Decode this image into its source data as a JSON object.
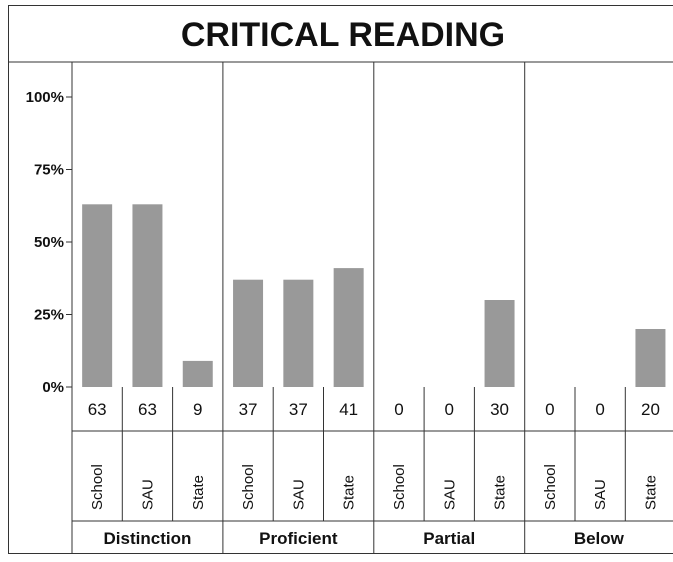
{
  "chart_data": {
    "type": "bar",
    "title": "CRITICAL READING",
    "xlabel": "",
    "ylabel": "",
    "ylim": [
      0,
      100
    ],
    "y_ticks": [
      "100%",
      "75%",
      "50%",
      "25%",
      "0%"
    ],
    "y_tick_values": [
      100,
      75,
      50,
      25,
      0
    ],
    "grid": false,
    "bar_color": "#999999",
    "groups": [
      {
        "label": "Distinction",
        "categories": [
          "School",
          "SAU",
          "State"
        ],
        "values": [
          63,
          63,
          9
        ]
      },
      {
        "label": "Proficient",
        "categories": [
          "School",
          "SAU",
          "State"
        ],
        "values": [
          37,
          37,
          41
        ]
      },
      {
        "label": "Partial",
        "categories": [
          "School",
          "SAU",
          "State"
        ],
        "values": [
          0,
          0,
          30
        ]
      },
      {
        "label": "Below",
        "categories": [
          "School",
          "SAU",
          "State"
        ],
        "values": [
          0,
          0,
          20
        ]
      }
    ]
  }
}
